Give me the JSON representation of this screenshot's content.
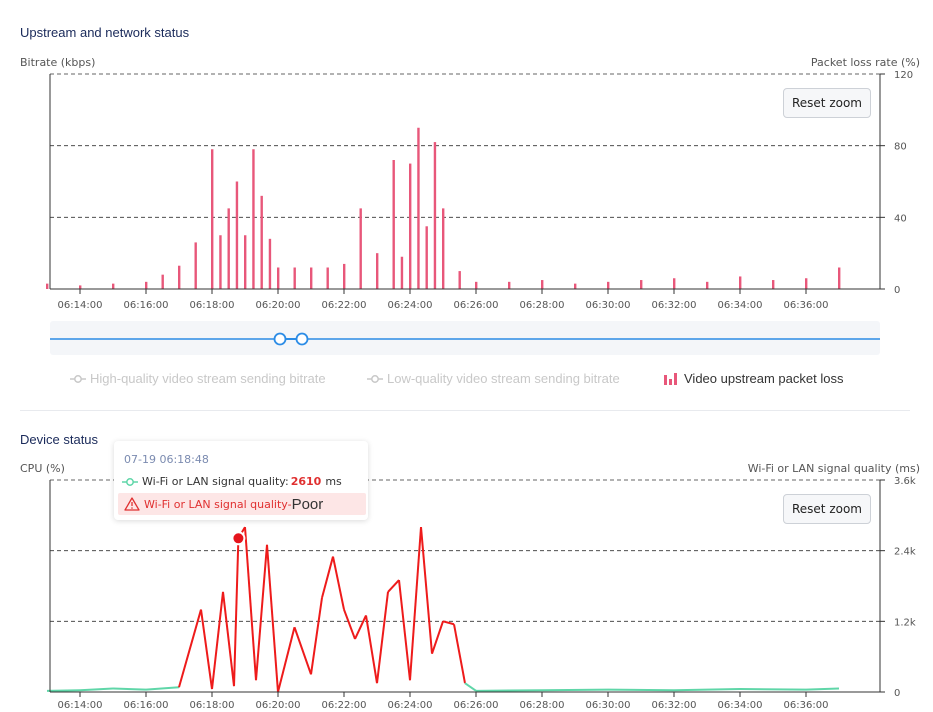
{
  "upstream": {
    "title": "Upstream and network status",
    "left_axis_label": "Bitrate (kbps)",
    "right_axis_label": "Packet loss rate (%)",
    "reset_zoom_label": "Reset zoom",
    "legend": [
      {
        "label": "High-quality video stream sending bitrate",
        "active": false,
        "icon": "line-marker-icon"
      },
      {
        "label": "Low-quality video stream sending bitrate",
        "active": false,
        "icon": "line-marker-icon"
      },
      {
        "label": "Video upstream packet loss",
        "active": true,
        "icon": "bar-icon"
      }
    ]
  },
  "device": {
    "title": "Device status",
    "left_axis_label": "CPU (%)",
    "right_axis_label": "Wi-Fi or LAN signal quality (ms)",
    "reset_zoom_label": "Reset zoom"
  },
  "tooltip": {
    "time": "07-19 06:18:48",
    "metric_label": "Wi-Fi or LAN signal quality:",
    "metric_value": "2610",
    "metric_unit": "ms",
    "status_label": "Wi-Fi or LAN signal quality-",
    "status_value": "Poor"
  },
  "colors": {
    "packet_loss": "#e8577a",
    "signal_good": "#5fd6a8",
    "signal_poor": "#ee1b1b",
    "slider": "#2b8ce6"
  },
  "chart_data": [
    {
      "type": "bar",
      "title": "Upstream and network status",
      "ylabel_left": "Bitrate (kbps)",
      "ylabel_right": "Packet loss rate (%)",
      "x_tick_labels": [
        "06:14:00",
        "06:16:00",
        "06:18:00",
        "06:20:00",
        "06:22:00",
        "06:24:00",
        "06:26:00",
        "06:28:00",
        "06:30:00",
        "06:32:00",
        "06:34:00",
        "06:36:00"
      ],
      "right_ticks": [
        "0",
        "40",
        "80",
        "120"
      ],
      "ylim_right": [
        0,
        120
      ],
      "grid": true,
      "series": [
        {
          "name": "Video upstream packet loss",
          "x": [
            "06:13:00",
            "06:14:00",
            "06:15:00",
            "06:16:00",
            "06:16:30",
            "06:17:00",
            "06:17:30",
            "06:18:00",
            "06:18:15",
            "06:18:30",
            "06:18:45",
            "06:19:00",
            "06:19:15",
            "06:19:30",
            "06:19:45",
            "06:20:00",
            "06:20:30",
            "06:21:00",
            "06:21:30",
            "06:22:00",
            "06:22:30",
            "06:23:00",
            "06:23:30",
            "06:23:45",
            "06:24:00",
            "06:24:15",
            "06:24:30",
            "06:24:45",
            "06:25:00",
            "06:25:30",
            "06:26:00",
            "06:27:00",
            "06:28:00",
            "06:29:00",
            "06:30:00",
            "06:31:00",
            "06:32:00",
            "06:33:00",
            "06:34:00",
            "06:35:00",
            "06:36:00",
            "06:37:00"
          ],
          "values": [
            3,
            2,
            3,
            4,
            8,
            13,
            26,
            78,
            30,
            45,
            60,
            30,
            78,
            52,
            28,
            12,
            12,
            12,
            12,
            14,
            45,
            20,
            72,
            18,
            70,
            90,
            35,
            82,
            45,
            10,
            4,
            4,
            5,
            3,
            4,
            5,
            6,
            4,
            7,
            5,
            6,
            12
          ]
        }
      ]
    },
    {
      "type": "line",
      "title": "Device status",
      "ylabel_left": "CPU (%)",
      "ylabel_right": "Wi-Fi or LAN signal quality (ms)",
      "x_tick_labels": [
        "06:14:00",
        "06:16:00",
        "06:18:00",
        "06:20:00",
        "06:22:00",
        "06:24:00",
        "06:26:00",
        "06:28:00",
        "06:30:00",
        "06:32:00",
        "06:34:00",
        "06:36:00"
      ],
      "right_ticks": [
        "0",
        "1.2k",
        "2.4k",
        "3.6k"
      ],
      "ylim_right": [
        0,
        3600
      ],
      "grid": true,
      "series": [
        {
          "name": "Wi-Fi or LAN signal quality",
          "x": [
            "06:13:00",
            "06:14:00",
            "06:15:00",
            "06:16:00",
            "06:17:00",
            "06:17:40",
            "06:18:00",
            "06:18:20",
            "06:18:40",
            "06:18:48",
            "06:19:00",
            "06:19:20",
            "06:19:40",
            "06:20:00",
            "06:20:30",
            "06:21:00",
            "06:21:20",
            "06:21:40",
            "06:22:00",
            "06:22:20",
            "06:22:40",
            "06:23:00",
            "06:23:20",
            "06:23:40",
            "06:24:00",
            "06:24:20",
            "06:24:40",
            "06:25:00",
            "06:25:20",
            "06:25:40",
            "06:26:00",
            "06:28:00",
            "06:30:00",
            "06:32:00",
            "06:34:00",
            "06:36:00",
            "06:37:00"
          ],
          "values": [
            20,
            30,
            60,
            40,
            80,
            1400,
            50,
            1700,
            100,
            2610,
            2800,
            200,
            2500,
            0,
            1100,
            300,
            1600,
            2300,
            1400,
            900,
            1300,
            150,
            1700,
            1900,
            200,
            2800,
            650,
            1200,
            1150,
            150,
            20,
            30,
            40,
            30,
            50,
            40,
            60
          ]
        }
      ]
    }
  ]
}
